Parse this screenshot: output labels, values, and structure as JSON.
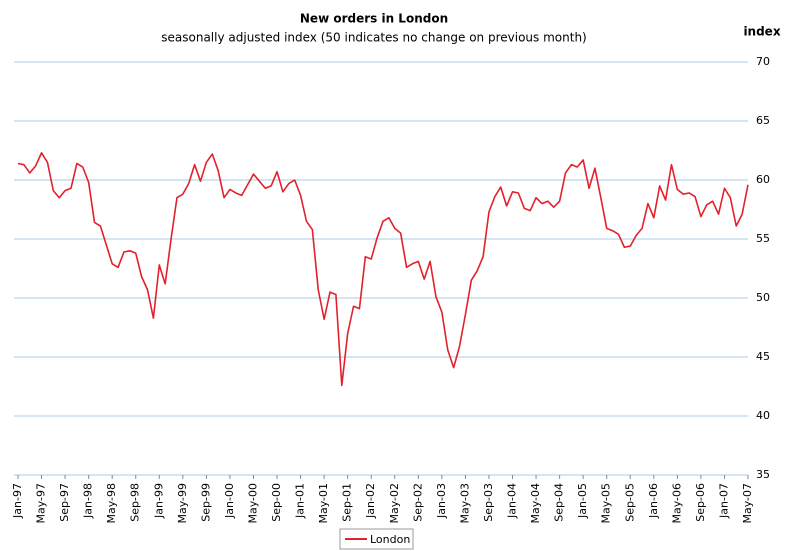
{
  "chart_data": {
    "type": "line",
    "title": "New orders in London",
    "subtitle": "seasonally adjusted index (50 indicates no change on previous month)",
    "y_axis_label": "index",
    "categories": [
      "Jan-97",
      null,
      null,
      null,
      "May-97",
      null,
      null,
      null,
      "Sep-97",
      null,
      null,
      null,
      "Jan-98",
      null,
      null,
      null,
      "May-98",
      null,
      null,
      null,
      "Sep-98",
      null,
      null,
      null,
      "Jan-99",
      null,
      null,
      null,
      "May-99",
      null,
      null,
      null,
      "Sep-99",
      null,
      null,
      null,
      "Jan-00",
      null,
      null,
      null,
      "May-00",
      null,
      null,
      null,
      "Sep-00",
      null,
      null,
      null,
      "Jan-01",
      null,
      null,
      null,
      "May-01",
      null,
      null,
      null,
      "Sep-01",
      null,
      null,
      null,
      "Jan-02",
      null,
      null,
      null,
      "May-02",
      null,
      null,
      null,
      "Sep-02",
      null,
      null,
      null,
      "Jan-03",
      null,
      null,
      null,
      "May-03",
      null,
      null,
      null,
      "Sep-03",
      null,
      null,
      null,
      "Jan-04",
      null,
      null,
      null,
      "May-04",
      null,
      null,
      null,
      "Sep-04",
      null,
      null,
      null,
      "Jan-05",
      null,
      null,
      null,
      "May-05",
      null,
      null,
      null,
      "Sep-05",
      null,
      null,
      null,
      "Jan-06",
      null,
      null,
      null,
      "May-06",
      null,
      null,
      null,
      "Sep-06",
      null,
      null,
      null,
      "Jan-07",
      null,
      null,
      null,
      "May-07"
    ],
    "series": [
      {
        "name": "London",
        "color": "#e3212b",
        "values": [
          61.4,
          61.3,
          60.6,
          61.2,
          62.3,
          61.5,
          59.1,
          58.5,
          59.1,
          59.3,
          61.4,
          61.1,
          59.8,
          56.4,
          56.1,
          54.5,
          52.9,
          52.6,
          53.9,
          54.0,
          53.8,
          51.8,
          50.7,
          48.3,
          52.8,
          51.2,
          55.0,
          58.5,
          58.8,
          59.7,
          61.3,
          59.9,
          61.5,
          62.2,
          60.8,
          58.5,
          59.2,
          58.9,
          58.7,
          59.6,
          60.5,
          59.9,
          59.3,
          59.5,
          60.7,
          59.0,
          59.7,
          60.0,
          58.7,
          56.5,
          55.8,
          50.7,
          48.2,
          50.5,
          50.3,
          42.6,
          47.0,
          49.3,
          49.1,
          53.5,
          53.3,
          55.1,
          56.5,
          56.8,
          55.9,
          55.5,
          52.6,
          52.9,
          53.1,
          51.6,
          53.1,
          50.1,
          48.8,
          45.6,
          44.1,
          45.9,
          48.6,
          51.5,
          52.3,
          53.5,
          57.3,
          58.6,
          59.4,
          57.8,
          59.0,
          58.9,
          57.6,
          57.4,
          58.5,
          58.0,
          58.2,
          57.7,
          58.2,
          60.6,
          61.3,
          61.1,
          61.7,
          59.3,
          61.0,
          58.5,
          55.9,
          55.7,
          55.4,
          54.3,
          54.4,
          55.3,
          55.9,
          58.0,
          56.8,
          59.5,
          58.3,
          61.3,
          59.2,
          58.8,
          58.9,
          58.6,
          56.9,
          57.9,
          58.2,
          57.1,
          59.3,
          58.5,
          56.1,
          57.1,
          59.6
        ]
      }
    ],
    "ylim": [
      35,
      70
    ],
    "yticks": [
      35,
      40,
      45,
      50,
      55,
      60,
      65,
      70
    ],
    "grid": true,
    "legend": "bottom"
  }
}
